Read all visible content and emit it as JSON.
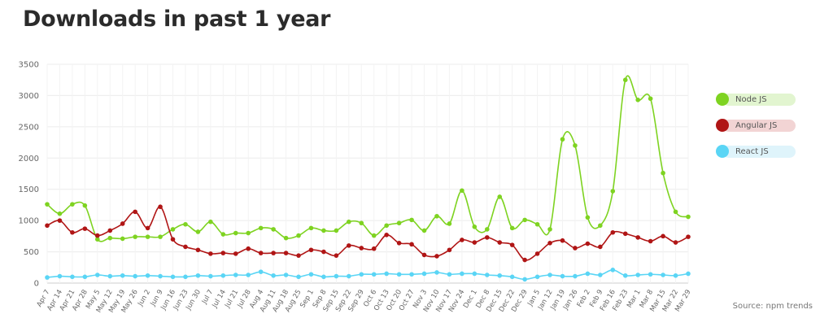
{
  "page": {
    "title": "Downloads in past 1 year",
    "source": "Source: npm trends"
  },
  "chart_data": {
    "type": "line",
    "title": "Downloads in past 1 year",
    "xlabel": "",
    "ylabel": "",
    "ylim": [
      0,
      3500
    ],
    "yticks": [
      0,
      500,
      1000,
      1500,
      2000,
      2500,
      3000,
      3500
    ],
    "grid": true,
    "legend_position": "right",
    "x": [
      "Apr 7",
      "Apr 14",
      "Apr 21",
      "Apr 28",
      "May 5",
      "May 12",
      "May 19",
      "May 26",
      "Jun 2",
      "Jun 9",
      "Jun 16",
      "Jun 23",
      "Jun 30",
      "Jul 7",
      "Jul 14",
      "Jul 21",
      "Jul 28",
      "Aug 4",
      "Aug 11",
      "Aug 18",
      "Aug 25",
      "Sep 1",
      "Sep 8",
      "Sep 15",
      "Sep 22",
      "Sep 29",
      "Oct 6",
      "Oct 13",
      "Oct 20",
      "Oct 27",
      "Nov 3",
      "Nov 10",
      "Nov 17",
      "Nov 24",
      "Dec 1",
      "Dec 8",
      "Dec 15",
      "Dec 22",
      "Dec 29",
      "Jan 5",
      "Jan 12",
      "Jan 19",
      "Jan 26",
      "Feb 2",
      "Feb 9",
      "Feb 16",
      "Feb 23",
      "Mar 1",
      "Mar 8",
      "Mar 15",
      "Mar 22",
      "Mar 29"
    ],
    "series": [
      {
        "name": "Node JS",
        "color": "#7ed321",
        "pill_color": "#e2f5d0",
        "values": [
          1260,
          1110,
          1260,
          1240,
          700,
          720,
          710,
          740,
          740,
          740,
          860,
          940,
          820,
          980,
          780,
          800,
          800,
          880,
          860,
          720,
          760,
          880,
          840,
          840,
          980,
          960,
          760,
          920,
          960,
          1010,
          840,
          1070,
          950,
          1480,
          900,
          860,
          1380,
          880,
          1010,
          940,
          860,
          2300,
          2200,
          1050,
          920,
          1470,
          3250,
          2930,
          2950,
          1760,
          1140,
          1060
        ]
      },
      {
        "name": "Angular JS",
        "color": "#b01515",
        "pill_color": "#f2d4d4",
        "values": [
          920,
          1000,
          810,
          870,
          760,
          840,
          950,
          1140,
          880,
          1220,
          700,
          580,
          530,
          470,
          480,
          470,
          550,
          480,
          480,
          480,
          440,
          530,
          500,
          440,
          600,
          560,
          550,
          770,
          640,
          620,
          450,
          430,
          530,
          690,
          650,
          730,
          650,
          610,
          370,
          470,
          640,
          680,
          560,
          630,
          580,
          810,
          790,
          730,
          670,
          750,
          650,
          740
        ]
      },
      {
        "name": "React JS",
        "color": "#5ad5f5",
        "pill_color": "#dff4fb",
        "values": [
          90,
          110,
          100,
          100,
          130,
          110,
          120,
          110,
          120,
          110,
          100,
          100,
          120,
          110,
          120,
          130,
          130,
          180,
          120,
          130,
          100,
          140,
          100,
          110,
          110,
          140,
          140,
          150,
          140,
          140,
          150,
          170,
          140,
          150,
          150,
          130,
          120,
          100,
          60,
          100,
          130,
          110,
          110,
          150,
          130,
          210,
          120,
          130,
          140,
          130,
          120,
          150
        ]
      }
    ]
  }
}
